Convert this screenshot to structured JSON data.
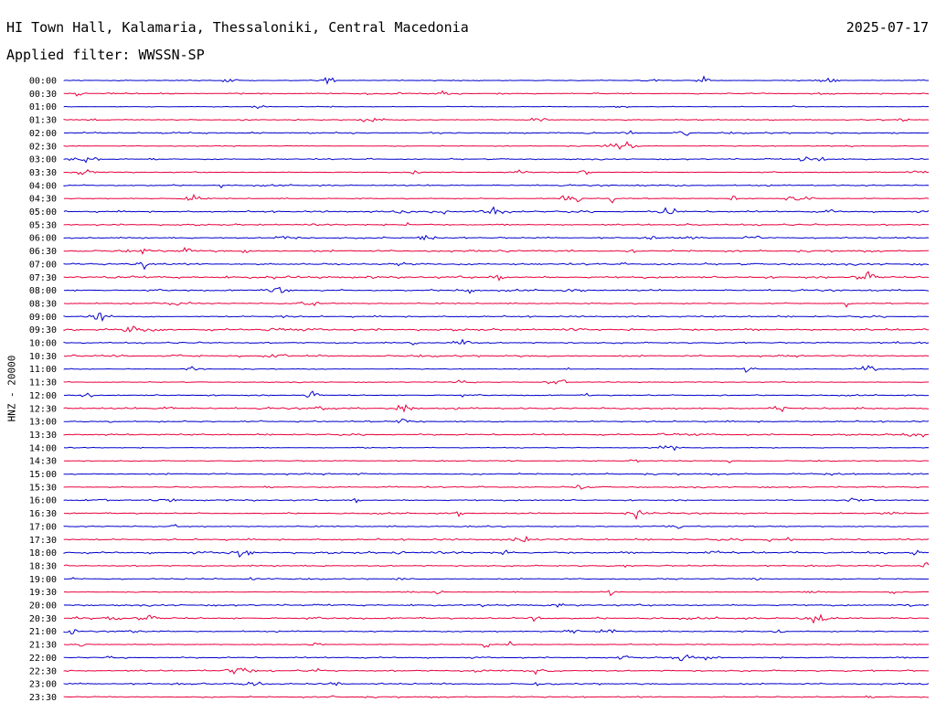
{
  "header": {
    "station": "HI Town Hall, Kalamaria, Thessaloniki, Central Macedonia",
    "date": "2025-07-17",
    "filter": "Applied filter: WWSSN-SP"
  },
  "chart_data": {
    "type": "line",
    "title": "HI Town Hall, Kalamaria, Thessaloniki, Central Macedonia",
    "ylabel": "HNZ - 20000",
    "xlabel": "",
    "trace_colors": [
      "#0000cc",
      "#e8003d"
    ],
    "rows": [
      "00:00",
      "00:30",
      "01:00",
      "01:30",
      "02:00",
      "02:30",
      "03:00",
      "03:30",
      "04:00",
      "04:30",
      "05:00",
      "05:30",
      "06:00",
      "06:30",
      "07:00",
      "07:30",
      "08:00",
      "08:30",
      "09:00",
      "09:30",
      "10:00",
      "10:30",
      "11:00",
      "11:30",
      "12:00",
      "12:30",
      "13:00",
      "13:30",
      "14:00",
      "14:30",
      "15:00",
      "15:30",
      "16:00",
      "16:30",
      "17:00",
      "17:30",
      "18:00",
      "18:30",
      "19:00",
      "19:30",
      "20:00",
      "20:30",
      "21:00",
      "21:30",
      "22:00",
      "22:30",
      "23:00",
      "23:30"
    ],
    "grid": false
  }
}
